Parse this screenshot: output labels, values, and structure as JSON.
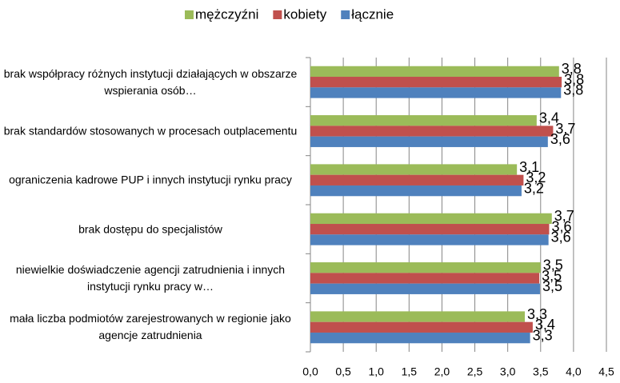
{
  "chart_data": {
    "type": "bar",
    "orientation": "horizontal",
    "categories": [
      "brak współpracy różnych instytucji działających w obszarze wspierania osób…",
      "brak standardów stosowanych w procesach outplacementu",
      "ograniczenia kadrowe PUP i innych instytucji rynku pracy",
      "brak dostępu do specjalistów",
      "niewielkie doświadczenie agencji zatrudnienia i innych instytucji rynku pracy w…",
      "mała liczba podmiotów zarejestrowanych w regionie jako agencje zatrudnienia"
    ],
    "series": [
      {
        "name": "mężczyźni",
        "color": "#9bbb59",
        "values": [
          3.78,
          3.44,
          3.14,
          3.67,
          3.5,
          3.26
        ],
        "value_labels": [
          "3,8",
          "3,4",
          "3,1",
          "3,7",
          "3,5",
          "3,3"
        ]
      },
      {
        "name": "kobiety",
        "color": "#c0504d",
        "values": [
          3.82,
          3.69,
          3.24,
          3.63,
          3.48,
          3.38
        ],
        "value_labels": [
          "3,8",
          "3,7",
          "3,2",
          "3,6",
          "3,5",
          "3,4"
        ]
      },
      {
        "name": "łącznie",
        "color": "#4f81bd",
        "values": [
          3.81,
          3.61,
          3.21,
          3.62,
          3.49,
          3.34
        ],
        "value_labels": [
          "3,8",
          "3,6",
          "3,2",
          "3,6",
          "3,5",
          "3,3"
        ]
      }
    ],
    "xlim": [
      0,
      4.5
    ],
    "xticks": [
      {
        "value": 0,
        "label": "0,0"
      },
      {
        "value": 0.5,
        "label": "0,5"
      },
      {
        "value": 1,
        "label": "1,0"
      },
      {
        "value": 1.5,
        "label": "1,5"
      },
      {
        "value": 2,
        "label": "2,0"
      },
      {
        "value": 2.5,
        "label": "2,5"
      },
      {
        "value": 3,
        "label": "3,0"
      },
      {
        "value": 3.5,
        "label": "3,5"
      },
      {
        "value": 4,
        "label": "4,0"
      },
      {
        "value": 4.5,
        "label": "4,5"
      }
    ],
    "grid": true,
    "legend": "top"
  }
}
